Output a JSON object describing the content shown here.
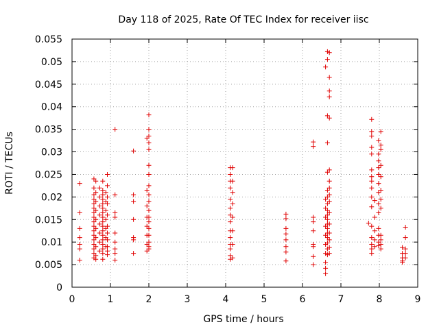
{
  "chart_data": {
    "type": "scatter",
    "title": "Day 118 of 2025, Rate Of TEC Index for receiver iisc",
    "xlabel": "GPS time / hours",
    "ylabel": "ROTI / TECUs",
    "xlim": [
      0,
      9
    ],
    "ylim": [
      0,
      0.055
    ],
    "xticks": [
      0,
      1,
      2,
      3,
      4,
      5,
      6,
      7,
      8,
      9
    ],
    "xtick_labels": [
      "0",
      "1",
      "2",
      "3",
      "4",
      "5",
      "6",
      "7",
      "8",
      "9"
    ],
    "yticks": [
      0,
      0.005,
      0.01,
      0.015,
      0.02,
      0.025,
      0.03,
      0.035,
      0.04,
      0.045,
      0.05,
      0.055
    ],
    "ytick_labels": [
      "0",
      "0.005",
      "0.01",
      "0.015",
      "0.02",
      "0.025",
      "0.03",
      "0.035",
      "0.04",
      "0.045",
      "0.05",
      "0.055"
    ],
    "grid": true,
    "marker": "+",
    "color": "#e00000",
    "series": [
      {
        "name": "iisc",
        "points": [
          [
            0.2,
            0.023
          ],
          [
            0.2,
            0.0165
          ],
          [
            0.2,
            0.013
          ],
          [
            0.2,
            0.011
          ],
          [
            0.2,
            0.0095
          ],
          [
            0.2,
            0.0085
          ],
          [
            0.2,
            0.006
          ],
          [
            0.57,
            0.024
          ],
          [
            0.57,
            0.022
          ],
          [
            0.57,
            0.0205
          ],
          [
            0.57,
            0.0195
          ],
          [
            0.57,
            0.0185
          ],
          [
            0.57,
            0.0175
          ],
          [
            0.57,
            0.0165
          ],
          [
            0.57,
            0.0155
          ],
          [
            0.57,
            0.0145
          ],
          [
            0.57,
            0.0135
          ],
          [
            0.57,
            0.0125
          ],
          [
            0.57,
            0.0115
          ],
          [
            0.57,
            0.0105
          ],
          [
            0.57,
            0.0095
          ],
          [
            0.57,
            0.0085
          ],
          [
            0.57,
            0.0075
          ],
          [
            0.57,
            0.0065
          ],
          [
            0.62,
            0.0235
          ],
          [
            0.62,
            0.021
          ],
          [
            0.62,
            0.019
          ],
          [
            0.62,
            0.017
          ],
          [
            0.62,
            0.015
          ],
          [
            0.62,
            0.013
          ],
          [
            0.62,
            0.011
          ],
          [
            0.62,
            0.009
          ],
          [
            0.62,
            0.007
          ],
          [
            0.62,
            0.0062
          ],
          [
            0.72,
            0.022
          ],
          [
            0.72,
            0.02
          ],
          [
            0.72,
            0.018
          ],
          [
            0.72,
            0.016
          ],
          [
            0.72,
            0.014
          ],
          [
            0.72,
            0.012
          ],
          [
            0.72,
            0.01
          ],
          [
            0.72,
            0.008
          ],
          [
            0.8,
            0.0235
          ],
          [
            0.8,
            0.0215
          ],
          [
            0.8,
            0.0205
          ],
          [
            0.8,
            0.0195
          ],
          [
            0.8,
            0.0185
          ],
          [
            0.8,
            0.0175
          ],
          [
            0.8,
            0.0165
          ],
          [
            0.8,
            0.0155
          ],
          [
            0.8,
            0.0145
          ],
          [
            0.8,
            0.0135
          ],
          [
            0.8,
            0.0125
          ],
          [
            0.8,
            0.0115
          ],
          [
            0.8,
            0.0105
          ],
          [
            0.8,
            0.0095
          ],
          [
            0.8,
            0.0085
          ],
          [
            0.8,
            0.0075
          ],
          [
            0.8,
            0.0062
          ],
          [
            0.88,
            0.021
          ],
          [
            0.88,
            0.019
          ],
          [
            0.88,
            0.017
          ],
          [
            0.88,
            0.015
          ],
          [
            0.88,
            0.013
          ],
          [
            0.88,
            0.011
          ],
          [
            0.88,
            0.009
          ],
          [
            0.92,
            0.025
          ],
          [
            0.92,
            0.0225
          ],
          [
            0.92,
            0.02
          ],
          [
            0.92,
            0.0185
          ],
          [
            0.92,
            0.016
          ],
          [
            0.92,
            0.0135
          ],
          [
            0.92,
            0.012
          ],
          [
            0.92,
            0.0105
          ],
          [
            0.92,
            0.009
          ],
          [
            0.92,
            0.008
          ],
          [
            0.92,
            0.0072
          ],
          [
            1.12,
            0.035
          ],
          [
            1.12,
            0.0205
          ],
          [
            1.12,
            0.0165
          ],
          [
            1.12,
            0.0155
          ],
          [
            1.12,
            0.012
          ],
          [
            1.12,
            0.01
          ],
          [
            1.12,
            0.0085
          ],
          [
            1.12,
            0.0075
          ],
          [
            1.12,
            0.006
          ],
          [
            1.6,
            0.0302
          ],
          [
            1.6,
            0.0205
          ],
          [
            1.6,
            0.019
          ],
          [
            1.6,
            0.015
          ],
          [
            1.6,
            0.011
          ],
          [
            1.6,
            0.0105
          ],
          [
            1.6,
            0.0075
          ],
          [
            1.95,
            0.033
          ],
          [
            1.95,
            0.0215
          ],
          [
            1.95,
            0.018
          ],
          [
            1.95,
            0.0155
          ],
          [
            1.95,
            0.0135
          ],
          [
            1.95,
            0.0115
          ],
          [
            1.95,
            0.0095
          ],
          [
            1.95,
            0.008
          ],
          [
            2.0,
            0.0382
          ],
          [
            2.0,
            0.035
          ],
          [
            2.0,
            0.0335
          ],
          [
            2.0,
            0.032
          ],
          [
            2.0,
            0.0305
          ],
          [
            2.0,
            0.027
          ],
          [
            2.0,
            0.025
          ],
          [
            2.0,
            0.0225
          ],
          [
            2.0,
            0.0205
          ],
          [
            2.0,
            0.019
          ],
          [
            2.0,
            0.017
          ],
          [
            2.0,
            0.0155
          ],
          [
            2.0,
            0.0145
          ],
          [
            2.0,
            0.013
          ],
          [
            2.0,
            0.0115
          ],
          [
            2.0,
            0.01
          ],
          [
            2.0,
            0.009
          ],
          [
            2.0,
            0.0085
          ],
          [
            4.12,
            0.0265
          ],
          [
            4.12,
            0.025
          ],
          [
            4.12,
            0.0235
          ],
          [
            4.12,
            0.022
          ],
          [
            4.12,
            0.0195
          ],
          [
            4.12,
            0.0175
          ],
          [
            4.12,
            0.016
          ],
          [
            4.12,
            0.0145
          ],
          [
            4.12,
            0.0125
          ],
          [
            4.12,
            0.011
          ],
          [
            4.12,
            0.0095
          ],
          [
            4.12,
            0.0085
          ],
          [
            4.12,
            0.007
          ],
          [
            4.12,
            0.0062
          ],
          [
            4.18,
            0.0265
          ],
          [
            4.18,
            0.0235
          ],
          [
            4.18,
            0.021
          ],
          [
            4.18,
            0.0185
          ],
          [
            4.18,
            0.0155
          ],
          [
            4.18,
            0.0125
          ],
          [
            4.18,
            0.0095
          ],
          [
            4.18,
            0.0065
          ],
          [
            5.57,
            0.0162
          ],
          [
            5.57,
            0.0152
          ],
          [
            5.57,
            0.013
          ],
          [
            5.57,
            0.0118
          ],
          [
            5.57,
            0.0105
          ],
          [
            5.57,
            0.009
          ],
          [
            5.57,
            0.0078
          ],
          [
            5.57,
            0.0058
          ],
          [
            6.28,
            0.0322
          ],
          [
            6.28,
            0.0312
          ],
          [
            6.28,
            0.0155
          ],
          [
            6.28,
            0.0145
          ],
          [
            6.28,
            0.0125
          ],
          [
            6.28,
            0.0095
          ],
          [
            6.28,
            0.009
          ],
          [
            6.28,
            0.0068
          ],
          [
            6.28,
            0.005
          ],
          [
            6.6,
            0.0488
          ],
          [
            6.6,
            0.0195
          ],
          [
            6.6,
            0.0175
          ],
          [
            6.6,
            0.0155
          ],
          [
            6.6,
            0.0135
          ],
          [
            6.6,
            0.0115
          ],
          [
            6.6,
            0.0095
          ],
          [
            6.6,
            0.0075
          ],
          [
            6.6,
            0.0055
          ],
          [
            6.6,
            0.0042
          ],
          [
            6.6,
            0.003
          ],
          [
            6.65,
            0.0522
          ],
          [
            6.65,
            0.0505
          ],
          [
            6.65,
            0.038
          ],
          [
            6.65,
            0.032
          ],
          [
            6.65,
            0.0255
          ],
          [
            6.65,
            0.0215
          ],
          [
            6.65,
            0.02
          ],
          [
            6.65,
            0.0185
          ],
          [
            6.65,
            0.017
          ],
          [
            6.65,
            0.016
          ],
          [
            6.65,
            0.015
          ],
          [
            6.65,
            0.014
          ],
          [
            6.65,
            0.013
          ],
          [
            6.65,
            0.012
          ],
          [
            6.65,
            0.011
          ],
          [
            6.65,
            0.0098
          ],
          [
            6.65,
            0.0085
          ],
          [
            6.65,
            0.0072
          ],
          [
            6.7,
            0.052
          ],
          [
            6.7,
            0.0465
          ],
          [
            6.7,
            0.0435
          ],
          [
            6.7,
            0.0422
          ],
          [
            6.7,
            0.0375
          ],
          [
            6.7,
            0.026
          ],
          [
            6.7,
            0.0235
          ],
          [
            6.7,
            0.022
          ],
          [
            6.7,
            0.0205
          ],
          [
            6.7,
            0.019
          ],
          [
            6.7,
            0.0165
          ],
          [
            6.7,
            0.014
          ],
          [
            6.7,
            0.012
          ],
          [
            6.7,
            0.0105
          ],
          [
            6.7,
            0.0088
          ],
          [
            6.7,
            0.0075
          ],
          [
            7.72,
            0.0142
          ],
          [
            7.8,
            0.0372
          ],
          [
            7.8,
            0.0345
          ],
          [
            7.8,
            0.0335
          ],
          [
            7.8,
            0.031
          ],
          [
            7.8,
            0.0295
          ],
          [
            7.8,
            0.026
          ],
          [
            7.8,
            0.0245
          ],
          [
            7.8,
            0.0235
          ],
          [
            7.8,
            0.022
          ],
          [
            7.8,
            0.02
          ],
          [
            7.8,
            0.0178
          ],
          [
            7.8,
            0.0135
          ],
          [
            7.8,
            0.011
          ],
          [
            7.8,
            0.0095
          ],
          [
            7.8,
            0.0085
          ],
          [
            7.8,
            0.0075
          ],
          [
            7.88,
            0.0192
          ],
          [
            7.88,
            0.0155
          ],
          [
            7.88,
            0.0125
          ],
          [
            7.88,
            0.0105
          ],
          [
            7.88,
            0.009
          ],
          [
            7.98,
            0.0325
          ],
          [
            7.98,
            0.0295
          ],
          [
            7.98,
            0.028
          ],
          [
            7.98,
            0.0265
          ],
          [
            7.98,
            0.025
          ],
          [
            7.98,
            0.023
          ],
          [
            7.98,
            0.021
          ],
          [
            7.98,
            0.0185
          ],
          [
            7.98,
            0.0165
          ],
          [
            7.98,
            0.013
          ],
          [
            7.98,
            0.0115
          ],
          [
            7.98,
            0.01
          ],
          [
            7.98,
            0.0092
          ],
          [
            8.04,
            0.0345
          ],
          [
            8.04,
            0.0315
          ],
          [
            8.04,
            0.0305
          ],
          [
            8.04,
            0.027
          ],
          [
            8.04,
            0.0245
          ],
          [
            8.04,
            0.0215
          ],
          [
            8.04,
            0.0195
          ],
          [
            8.04,
            0.0175
          ],
          [
            8.04,
            0.0115
          ],
          [
            8.04,
            0.0105
          ],
          [
            8.04,
            0.0095
          ],
          [
            8.04,
            0.0085
          ],
          [
            8.6,
            0.0088
          ],
          [
            8.6,
            0.0075
          ],
          [
            8.6,
            0.0065
          ],
          [
            8.6,
            0.0058
          ],
          [
            8.6,
            0.0055
          ],
          [
            8.68,
            0.0133
          ],
          [
            8.68,
            0.011
          ],
          [
            8.68,
            0.0085
          ],
          [
            8.68,
            0.0075
          ],
          [
            8.68,
            0.0065
          ]
        ]
      }
    ]
  }
}
